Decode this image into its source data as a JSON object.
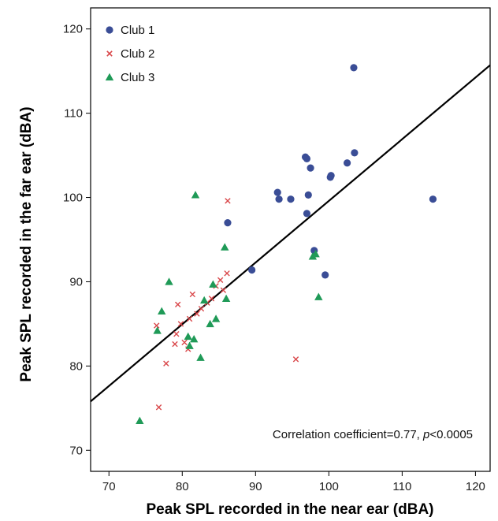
{
  "chart_data": {
    "type": "scatter",
    "xlabel": "Peak SPL recorded in the near ear (dBA)",
    "ylabel": "Peak SPL recorded in the far ear (dBA)",
    "xlim": [
      67.5,
      122
    ],
    "ylim": [
      67.5,
      122.5
    ],
    "xticks": [
      70,
      80,
      90,
      100,
      110,
      120
    ],
    "yticks": [
      70,
      80,
      90,
      100,
      110,
      120
    ],
    "grid": false,
    "legend_position": "top-left",
    "series": [
      {
        "name": "Club 1",
        "marker": "circle",
        "color": "#3a4d96",
        "points": [
          [
            86.2,
            97.0
          ],
          [
            89.5,
            91.4
          ],
          [
            93.0,
            100.6
          ],
          [
            93.2,
            99.8
          ],
          [
            94.8,
            99.8
          ],
          [
            96.8,
            104.8
          ],
          [
            97.0,
            104.6
          ],
          [
            97.5,
            103.5
          ],
          [
            97.2,
            100.3
          ],
          [
            97.0,
            98.1
          ],
          [
            98.0,
            93.7
          ],
          [
            99.5,
            90.8
          ],
          [
            100.2,
            102.4
          ],
          [
            100.3,
            102.6
          ],
          [
            102.5,
            104.1
          ],
          [
            103.5,
            105.3
          ],
          [
            103.4,
            115.4
          ],
          [
            114.2,
            99.8
          ]
        ]
      },
      {
        "name": "Club 2",
        "marker": "x",
        "color": "#d9474a",
        "points": [
          [
            76.8,
            75.1
          ],
          [
            76.5,
            84.8
          ],
          [
            77.8,
            80.3
          ],
          [
            79.0,
            82.6
          ],
          [
            79.2,
            83.8
          ],
          [
            79.4,
            87.3
          ],
          [
            79.8,
            85.0
          ],
          [
            80.3,
            82.8
          ],
          [
            80.8,
            82.0
          ],
          [
            81.0,
            85.6
          ],
          [
            81.4,
            88.5
          ],
          [
            82.0,
            86.2
          ],
          [
            82.6,
            86.8
          ],
          [
            83.4,
            87.5
          ],
          [
            84.0,
            88.0
          ],
          [
            84.6,
            89.5
          ],
          [
            85.2,
            90.2
          ],
          [
            85.6,
            89.0
          ],
          [
            86.1,
            91.0
          ],
          [
            86.2,
            99.6
          ],
          [
            95.5,
            80.8
          ]
        ]
      },
      {
        "name": "Club 3",
        "marker": "triangle",
        "color": "#1f9a57",
        "points": [
          [
            74.2,
            73.5
          ],
          [
            76.6,
            84.2
          ],
          [
            77.2,
            86.5
          ],
          [
            78.2,
            90.0
          ],
          [
            80.8,
            83.5
          ],
          [
            81.0,
            82.4
          ],
          [
            81.6,
            83.2
          ],
          [
            81.8,
            100.3
          ],
          [
            82.5,
            81.0
          ],
          [
            83.0,
            87.8
          ],
          [
            83.8,
            85.0
          ],
          [
            84.2,
            89.7
          ],
          [
            84.6,
            85.6
          ],
          [
            85.8,
            94.1
          ],
          [
            86.0,
            88.0
          ],
          [
            97.8,
            93.0
          ],
          [
            98.2,
            93.3
          ],
          [
            98.6,
            88.2
          ]
        ]
      }
    ],
    "fit_line": {
      "x1": 67.5,
      "y1": 75.8,
      "x2": 122,
      "y2": 115.7
    },
    "annotation": {
      "text_before": "Correlation coefficient=0.77, ",
      "p_symbol": "p",
      "text_after": "<0.0005"
    }
  }
}
